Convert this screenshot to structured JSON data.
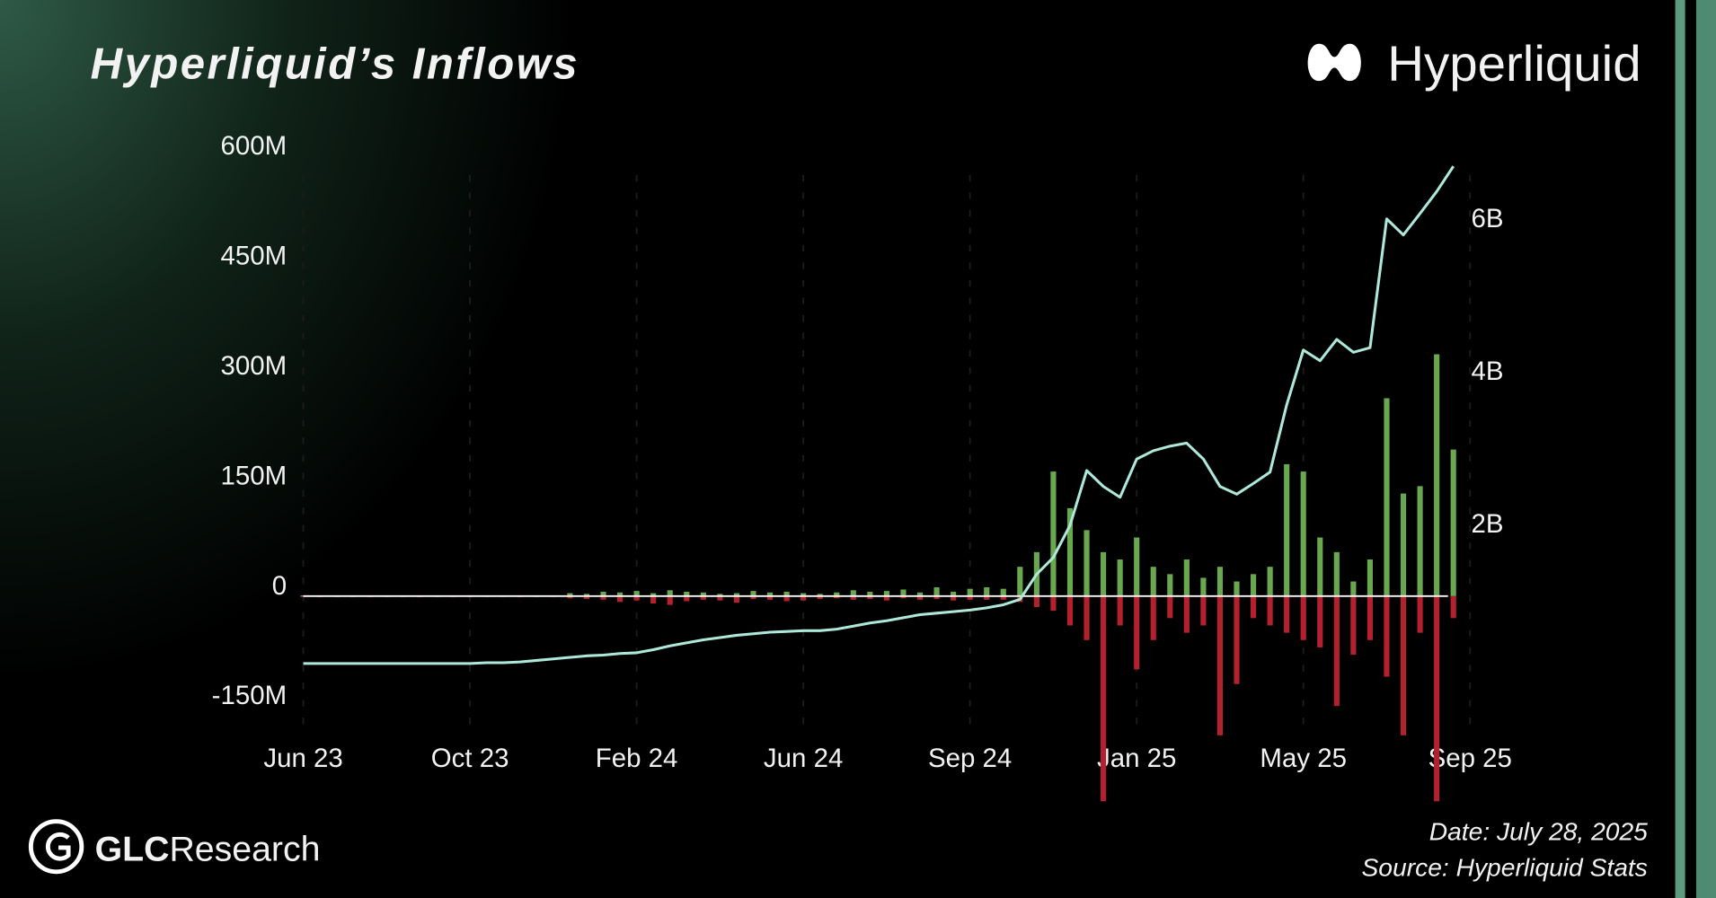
{
  "header": {
    "brand": "Hyperliquid",
    "research_bold": "GLC",
    "research_rest": "Research"
  },
  "footer": {
    "date": "Date: July 28, 2025",
    "source": "Source: Hyperliquid Stats"
  },
  "chart_data": {
    "type": "bar",
    "title": "Hyperliquid’s Inflows",
    "grid": true,
    "categories": [
      "Jun 23",
      null,
      null,
      null,
      null,
      null,
      null,
      null,
      null,
      null,
      "Oct 23",
      null,
      null,
      null,
      null,
      null,
      null,
      null,
      null,
      null,
      "Feb 24",
      null,
      null,
      null,
      null,
      null,
      null,
      null,
      null,
      null,
      "Jun 24",
      null,
      null,
      null,
      null,
      null,
      null,
      null,
      null,
      null,
      "Sep 24",
      null,
      null,
      null,
      null,
      null,
      null,
      null,
      null,
      null,
      "Jan 25",
      null,
      null,
      null,
      null,
      null,
      null,
      null,
      null,
      null,
      "May 25",
      null,
      null,
      null,
      null,
      null,
      null,
      null,
      null,
      null,
      "Sep 25"
    ],
    "ylim": [
      -300,
      650
    ],
    "yticks": [
      {
        "value": 600,
        "label": "600M"
      },
      {
        "value": 450,
        "label": "450M"
      },
      {
        "value": 300,
        "label": "300M"
      },
      {
        "value": 150,
        "label": "150M"
      },
      0,
      {
        "value": -150,
        "label": "-150M"
      }
    ],
    "y2lim": [
      -1.81,
      7.32
    ],
    "y2ticks": [
      {
        "value": 6,
        "label": "6B"
      },
      {
        "value": 4,
        "label": "4B"
      },
      {
        "value": 2,
        "label": "2B"
      }
    ],
    "series": [
      {
        "type": "bar",
        "color": "#6aa84f",
        "values": [
          1,
          1,
          1,
          1,
          1,
          1,
          1,
          1,
          1,
          1,
          1,
          1,
          1,
          1,
          1,
          1,
          4,
          3,
          6,
          5,
          7,
          4,
          8,
          6,
          5,
          3,
          4,
          7,
          5,
          6,
          4,
          3,
          5,
          8,
          6,
          7,
          9,
          5,
          12,
          6,
          10,
          12,
          10,
          40,
          60,
          170,
          120,
          90,
          60,
          50,
          80,
          40,
          30,
          50,
          25,
          40,
          20,
          30,
          40,
          180,
          170,
          80,
          60,
          20,
          50,
          270,
          140,
          150,
          330,
          200,
          null
        ]
      },
      {
        "type": "bar",
        "color": "#b3202e",
        "values": [
          -1,
          -1,
          -1,
          -1,
          -1,
          -1,
          -1,
          -1,
          -1,
          -1,
          -1,
          -1,
          -1,
          -1,
          -1,
          -1,
          -3,
          -4,
          -5,
          -8,
          -6,
          -10,
          -12,
          -7,
          -5,
          -6,
          -9,
          -4,
          -5,
          -7,
          -6,
          -4,
          -3,
          -5,
          -4,
          -6,
          -3,
          -5,
          -4,
          -6,
          -5,
          -5,
          -5,
          -8,
          -15,
          -20,
          -40,
          -60,
          -280,
          -40,
          -100,
          -60,
          -30,
          -50,
          -40,
          -190,
          -120,
          -30,
          -40,
          -50,
          -60,
          -70,
          -150,
          -80,
          -60,
          -110,
          -190,
          -50,
          -280,
          -30,
          null
        ]
      },
      {
        "type": "line",
        "axis": "y2",
        "color": "#aee8da",
        "values": [
          0.19,
          0.19,
          0.19,
          0.19,
          0.19,
          0.19,
          0.19,
          0.19,
          0.19,
          0.19,
          0.19,
          0.2,
          0.2,
          0.21,
          0.23,
          0.25,
          0.27,
          0.29,
          0.3,
          0.32,
          0.33,
          0.37,
          0.42,
          0.46,
          0.5,
          0.53,
          0.56,
          0.58,
          0.6,
          0.61,
          0.62,
          0.62,
          0.64,
          0.68,
          0.72,
          0.75,
          0.79,
          0.83,
          0.85,
          0.87,
          0.89,
          0.92,
          0.96,
          1.03,
          1.36,
          1.58,
          2.0,
          2.72,
          2.51,
          2.37,
          2.87,
          2.98,
          3.04,
          3.08,
          2.87,
          2.51,
          2.41,
          2.55,
          2.7,
          3.58,
          4.3,
          4.16,
          4.44,
          4.27,
          4.33,
          6.02,
          5.81,
          6.09,
          6.38,
          6.71,
          null
        ]
      }
    ]
  }
}
